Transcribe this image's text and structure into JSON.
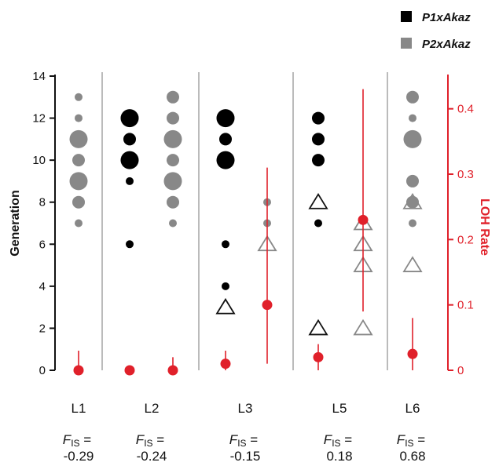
{
  "chart_data": {
    "type": "scatter",
    "ylabel": "Generation",
    "ylabel_right": "LOH Rate",
    "ylim": [
      0,
      14
    ],
    "ylim_right": [
      0,
      0.45
    ],
    "yticks": [
      "0",
      "2",
      "4",
      "6",
      "8",
      "10",
      "12",
      "14"
    ],
    "yticks_right": [
      "0",
      "0.1",
      "0.2",
      "0.3",
      "0.4"
    ],
    "colors": {
      "P1xAkaz": "#000000",
      "P2xAkaz": "#888888",
      "loh": "#e0202a",
      "separator": "#bbbbbb"
    },
    "legend": {
      "position": "top-right",
      "entries": [
        {
          "label": "P1xAkaz",
          "color": "#000000"
        },
        {
          "label": "P2xAkaz",
          "color": "#888888"
        }
      ]
    },
    "fis_label": "F",
    "fis_sub": "IS",
    "fis_eq": "=",
    "lines": [
      {
        "label": "L1",
        "fis": "-0.29",
        "p1_points": [],
        "p2_points": [
          {
            "gen": 13,
            "size": "small"
          },
          {
            "gen": 12,
            "size": "small"
          },
          {
            "gen": 11,
            "size": "large"
          },
          {
            "gen": 10,
            "size": "medium"
          },
          {
            "gen": 9,
            "size": "large"
          },
          {
            "gen": 8,
            "size": "medium"
          },
          {
            "gen": 7,
            "size": "small"
          }
        ],
        "p1_triangles": [],
        "p2_triangles": [],
        "loh_rate": 0.0,
        "loh_ci": [
          0.0,
          0.03
        ]
      },
      {
        "label": "L2",
        "fis": "-0.24",
        "p1_points": [
          {
            "gen": 12,
            "size": "large"
          },
          {
            "gen": 11,
            "size": "medium"
          },
          {
            "gen": 10,
            "size": "large"
          },
          {
            "gen": 9,
            "size": "small"
          },
          {
            "gen": 6,
            "size": "small"
          }
        ],
        "p2_points": [
          {
            "gen": 13,
            "size": "medium"
          },
          {
            "gen": 12,
            "size": "medium"
          },
          {
            "gen": 11,
            "size": "large"
          },
          {
            "gen": 10,
            "size": "medium"
          },
          {
            "gen": 9,
            "size": "large"
          },
          {
            "gen": 8,
            "size": "medium"
          },
          {
            "gen": 7,
            "size": "small"
          }
        ],
        "p1_triangles": [],
        "p2_triangles": [],
        "loh_rate_p1": 0.0,
        "loh_rate_p2": 0.0,
        "loh_ci_p2": [
          0.0,
          0.02
        ]
      },
      {
        "label": "L3",
        "fis": "-0.15",
        "p1_points": [
          {
            "gen": 12,
            "size": "large"
          },
          {
            "gen": 11,
            "size": "medium"
          },
          {
            "gen": 10,
            "size": "large"
          },
          {
            "gen": 6,
            "size": "small"
          },
          {
            "gen": 4,
            "size": "small"
          }
        ],
        "p2_points": [
          {
            "gen": 8,
            "size": "small"
          },
          {
            "gen": 7,
            "size": "small"
          }
        ],
        "p1_triangles": [
          3
        ],
        "p2_triangles": [
          6
        ],
        "loh_rate_p1": 0.01,
        "loh_ci_p1": [
          0.0,
          0.03
        ],
        "loh_rate_p2": 0.1,
        "loh_ci_p2": [
          0.01,
          0.31
        ]
      },
      {
        "label": "L5",
        "fis": "0.18",
        "p1_points": [
          {
            "gen": 12,
            "size": "medium"
          },
          {
            "gen": 11,
            "size": "medium"
          },
          {
            "gen": 10,
            "size": "medium"
          },
          {
            "gen": 7,
            "size": "small"
          }
        ],
        "p2_points": [],
        "p1_triangles": [
          8,
          2
        ],
        "p2_triangles": [
          7,
          6,
          5,
          2
        ],
        "loh_rate_p1": 0.02,
        "loh_ci_p1": [
          0.0,
          0.04
        ],
        "loh_rate_p2": 0.23,
        "loh_ci_p2": [
          0.09,
          0.43
        ]
      },
      {
        "label": "L6",
        "fis": "0.68",
        "p1_points": [],
        "p2_points": [
          {
            "gen": 13,
            "size": "medium"
          },
          {
            "gen": 12,
            "size": "small"
          },
          {
            "gen": 11,
            "size": "large"
          },
          {
            "gen": 9,
            "size": "medium"
          },
          {
            "gen": 8,
            "size": "medium"
          },
          {
            "gen": 7,
            "size": "small"
          }
        ],
        "p1_triangles": [],
        "p2_triangles": [
          8,
          5
        ],
        "loh_rate": 0.025,
        "loh_ci": [
          0.0,
          0.08
        ]
      }
    ]
  }
}
